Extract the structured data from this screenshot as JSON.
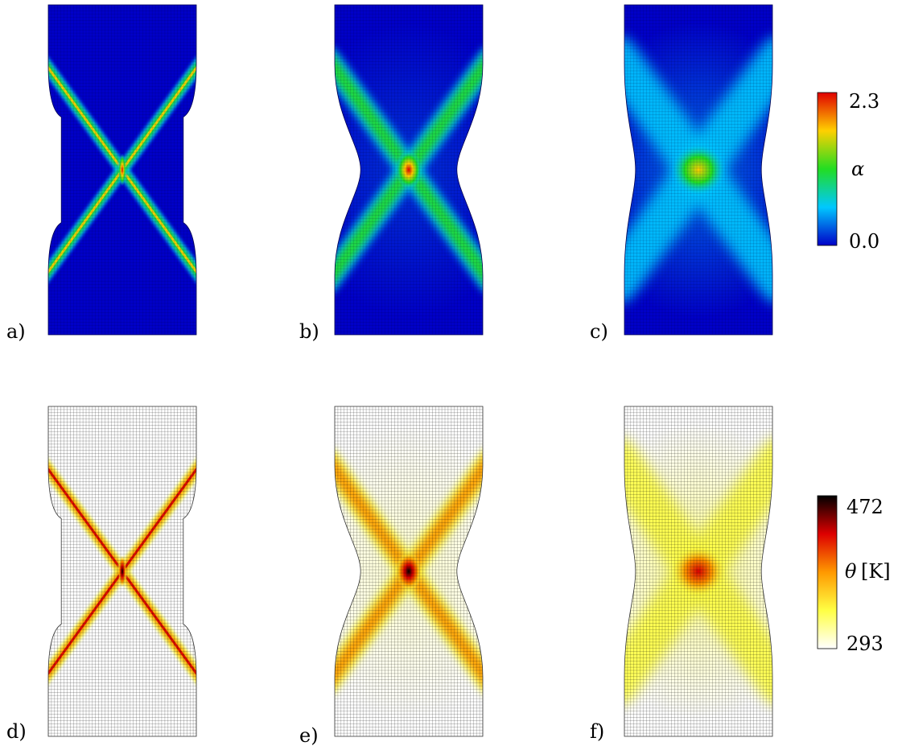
{
  "panels": [
    {
      "label": "a)",
      "field": "alpha",
      "stage": 0
    },
    {
      "label": "b)",
      "field": "alpha",
      "stage": 1
    },
    {
      "label": "c)",
      "field": "alpha",
      "stage": 2
    },
    {
      "label": "d)",
      "field": "theta",
      "stage": 0
    },
    {
      "label": "e)",
      "field": "theta",
      "stage": 1
    },
    {
      "label": "f)",
      "field": "theta",
      "stage": 2
    }
  ],
  "colorbars": {
    "alpha": {
      "max_label": "2.3",
      "min_label": "0.0",
      "symbol": "α",
      "unit": "",
      "colormap": "jet",
      "colors": [
        "#0000c8",
        "#00c8ff",
        "#22dd22",
        "#ffd000",
        "#e00000"
      ]
    },
    "theta": {
      "max_label": "472",
      "min_label": "293",
      "symbol": "θ",
      "unit": "[K]",
      "colormap": "hot",
      "colors": [
        "#ffffff",
        "#ffff44",
        "#ff9900",
        "#dd0000",
        "#000000"
      ]
    }
  }
}
